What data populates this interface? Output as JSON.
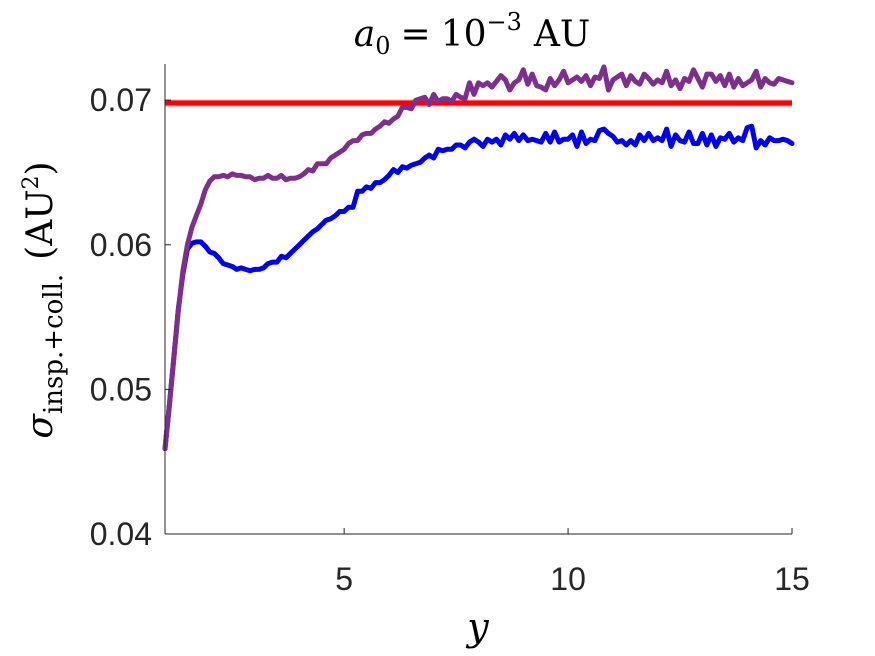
{
  "chart_data": {
    "type": "line",
    "title": {
      "symbol": "a",
      "subscript": "0",
      "equals": "=",
      "base": "10",
      "exponent": "−3",
      "unit": "AU"
    },
    "xlabel": "y",
    "ylabel": {
      "symbol": "σ",
      "subscript": "insp.+coll.",
      "unit_open": "(AU",
      "unit_sup": "2",
      "unit_close": ")"
    },
    "xlim": [
      1,
      15
    ],
    "ylim": [
      0.04,
      0.0725
    ],
    "x_ticks": [
      5,
      10,
      15
    ],
    "x_tick_labels": [
      "5",
      "10",
      "15"
    ],
    "y_ticks": [
      0.04,
      0.05,
      0.06,
      0.07
    ],
    "y_tick_labels": [
      "0.04",
      "0.05",
      "0.06",
      "0.07"
    ],
    "grid": false,
    "reference_line": {
      "y": 0.0698,
      "band": [
        0.06955,
        0.07005
      ],
      "color": "#ff0000",
      "band_color": "#f4b8b8"
    },
    "series": [
      {
        "color": "#0000ee",
        "x": [
          1.0,
          1.1,
          1.2,
          1.3,
          1.4,
          1.5,
          1.6,
          1.7,
          1.8,
          1.9,
          2.0,
          2.1,
          2.2,
          2.3,
          2.4,
          2.5,
          2.6,
          2.7,
          2.8,
          2.9,
          3.0,
          3.1,
          3.2,
          3.3,
          3.4,
          3.5,
          3.6,
          3.7,
          3.8,
          3.9,
          4.0,
          4.1,
          4.2,
          4.3,
          4.4,
          4.5,
          4.6,
          4.7,
          4.8,
          4.9,
          5.0,
          5.1,
          5.2,
          5.3,
          5.4,
          5.5,
          5.6,
          5.7,
          5.8,
          5.9,
          6.0,
          6.1,
          6.2,
          6.3,
          6.4,
          6.5,
          6.6,
          6.7,
          6.8,
          6.9,
          7.0,
          7.1,
          7.2,
          7.3,
          7.4,
          7.5,
          7.6,
          7.7,
          7.8,
          7.9,
          8.0,
          8.1,
          8.2,
          8.3,
          8.4,
          8.5,
          8.6,
          8.7,
          8.8,
          8.9,
          9.0,
          9.1,
          9.2,
          9.3,
          9.4,
          9.5,
          9.6,
          9.7,
          9.8,
          9.9,
          10.0,
          10.1,
          10.2,
          10.3,
          10.4,
          10.5,
          10.6,
          10.7,
          10.8,
          10.9,
          11.0,
          11.1,
          11.2,
          11.3,
          11.4,
          11.5,
          11.6,
          11.7,
          11.8,
          11.9,
          12.0,
          12.1,
          12.2,
          12.3,
          12.4,
          12.5,
          12.6,
          12.7,
          12.8,
          12.9,
          13.0,
          13.1,
          13.2,
          13.3,
          13.4,
          13.5,
          13.6,
          13.7,
          13.8,
          13.9,
          14.0,
          14.1,
          14.2,
          14.3,
          14.4,
          14.5,
          14.6,
          14.7,
          14.8,
          14.9,
          15.0
        ],
        "y": [
          0.0459,
          0.049,
          0.0523,
          0.0556,
          0.058,
          0.0597,
          0.0601,
          0.0602,
          0.0602,
          0.0599,
          0.0595,
          0.0594,
          0.0591,
          0.0587,
          0.0586,
          0.0585,
          0.0583,
          0.0584,
          0.0583,
          0.0582,
          0.0583,
          0.0583,
          0.0584,
          0.0587,
          0.0588,
          0.0588,
          0.0592,
          0.0591,
          0.0594,
          0.0597,
          0.06,
          0.0603,
          0.0606,
          0.0609,
          0.0611,
          0.0614,
          0.0617,
          0.0618,
          0.062,
          0.0623,
          0.0623,
          0.0626,
          0.0626,
          0.0637,
          0.0637,
          0.064,
          0.0639,
          0.0643,
          0.0643,
          0.0645,
          0.0648,
          0.0652,
          0.065,
          0.0654,
          0.0653,
          0.0655,
          0.0656,
          0.0657,
          0.066,
          0.0662,
          0.066,
          0.0666,
          0.0665,
          0.0666,
          0.0666,
          0.0669,
          0.0669,
          0.0667,
          0.0671,
          0.0673,
          0.0671,
          0.0668,
          0.0673,
          0.0671,
          0.0673,
          0.0669,
          0.0676,
          0.0673,
          0.0677,
          0.0672,
          0.0676,
          0.0672,
          0.0673,
          0.0672,
          0.0671,
          0.0677,
          0.0671,
          0.0678,
          0.0671,
          0.0673,
          0.0673,
          0.0676,
          0.0668,
          0.0678,
          0.067,
          0.0673,
          0.0672,
          0.0679,
          0.068,
          0.0677,
          0.0675,
          0.0671,
          0.0672,
          0.0669,
          0.0672,
          0.0669,
          0.0676,
          0.0672,
          0.0677,
          0.0672,
          0.0674,
          0.0672,
          0.068,
          0.0668,
          0.0676,
          0.0672,
          0.0671,
          0.0678,
          0.067,
          0.067,
          0.0677,
          0.0669,
          0.0676,
          0.0668,
          0.0674,
          0.0673,
          0.0677,
          0.0671,
          0.0674,
          0.0672,
          0.0681,
          0.0682,
          0.0667,
          0.0672,
          0.0669,
          0.0674,
          0.0672,
          0.0672,
          0.0673,
          0.0672,
          0.067
        ]
      },
      {
        "color": "#7e2f8e",
        "x": [
          1.0,
          1.1,
          1.2,
          1.3,
          1.4,
          1.5,
          1.6,
          1.7,
          1.8,
          1.9,
          2.0,
          2.1,
          2.2,
          2.3,
          2.4,
          2.5,
          2.6,
          2.7,
          2.8,
          2.9,
          3.0,
          3.1,
          3.2,
          3.3,
          3.4,
          3.5,
          3.6,
          3.7,
          3.8,
          3.9,
          4.0,
          4.1,
          4.2,
          4.3,
          4.4,
          4.5,
          4.6,
          4.7,
          4.8,
          4.9,
          5.0,
          5.1,
          5.2,
          5.3,
          5.4,
          5.5,
          5.6,
          5.7,
          5.8,
          5.9,
          6.0,
          6.1,
          6.2,
          6.3,
          6.4,
          6.5,
          6.6,
          6.7,
          6.8,
          6.9,
          7.0,
          7.1,
          7.2,
          7.3,
          7.4,
          7.5,
          7.6,
          7.7,
          7.8,
          7.9,
          8.0,
          8.1,
          8.2,
          8.3,
          8.4,
          8.5,
          8.6,
          8.7,
          8.8,
          8.9,
          9.0,
          9.1,
          9.2,
          9.3,
          9.4,
          9.5,
          9.6,
          9.7,
          9.8,
          9.9,
          10.0,
          10.1,
          10.2,
          10.3,
          10.4,
          10.5,
          10.6,
          10.7,
          10.8,
          10.9,
          11.0,
          11.1,
          11.2,
          11.3,
          11.4,
          11.5,
          11.6,
          11.7,
          11.8,
          11.9,
          12.0,
          12.1,
          12.2,
          12.3,
          12.4,
          12.5,
          12.6,
          12.7,
          12.8,
          12.9,
          13.0,
          13.1,
          13.2,
          13.3,
          13.4,
          13.5,
          13.6,
          13.7,
          13.8,
          13.9,
          14.0,
          14.1,
          14.2,
          14.3,
          14.4,
          14.5,
          14.6,
          14.7,
          14.8,
          14.9,
          15.0
        ],
        "y": [
          0.0459,
          0.049,
          0.0523,
          0.0555,
          0.0582,
          0.06,
          0.0612,
          0.062,
          0.0628,
          0.0638,
          0.0644,
          0.0647,
          0.0647,
          0.0648,
          0.0647,
          0.0649,
          0.0648,
          0.0648,
          0.0647,
          0.0647,
          0.0645,
          0.0646,
          0.0646,
          0.0648,
          0.0646,
          0.0646,
          0.0648,
          0.0645,
          0.0646,
          0.0646,
          0.0647,
          0.0649,
          0.0652,
          0.0651,
          0.0656,
          0.0656,
          0.0656,
          0.066,
          0.0662,
          0.0664,
          0.0666,
          0.067,
          0.0672,
          0.0672,
          0.0676,
          0.0677,
          0.0677,
          0.068,
          0.0682,
          0.0685,
          0.0684,
          0.0687,
          0.0689,
          0.0695,
          0.0695,
          0.0694,
          0.07,
          0.0701,
          0.0702,
          0.0697,
          0.0704,
          0.0699,
          0.0701,
          0.0701,
          0.0699,
          0.0704,
          0.0702,
          0.0701,
          0.0712,
          0.0704,
          0.0712,
          0.071,
          0.0712,
          0.0709,
          0.0713,
          0.0717,
          0.0714,
          0.0707,
          0.0712,
          0.0714,
          0.0721,
          0.0711,
          0.0718,
          0.071,
          0.0709,
          0.0707,
          0.0715,
          0.071,
          0.0714,
          0.072,
          0.0712,
          0.0714,
          0.0716,
          0.0713,
          0.0717,
          0.071,
          0.0716,
          0.0715,
          0.0723,
          0.0707,
          0.0714,
          0.0716,
          0.0718,
          0.071,
          0.0717,
          0.0713,
          0.0711,
          0.0718,
          0.0715,
          0.0711,
          0.0714,
          0.0712,
          0.072,
          0.071,
          0.0714,
          0.0708,
          0.0715,
          0.0713,
          0.0721,
          0.0715,
          0.0709,
          0.0718,
          0.0718,
          0.0713,
          0.0717,
          0.071,
          0.0718,
          0.0709,
          0.0715,
          0.071,
          0.0712,
          0.0714,
          0.072,
          0.0709,
          0.0715,
          0.0712,
          0.0711,
          0.0715,
          0.0714,
          0.0713,
          0.0712
        ]
      }
    ]
  }
}
